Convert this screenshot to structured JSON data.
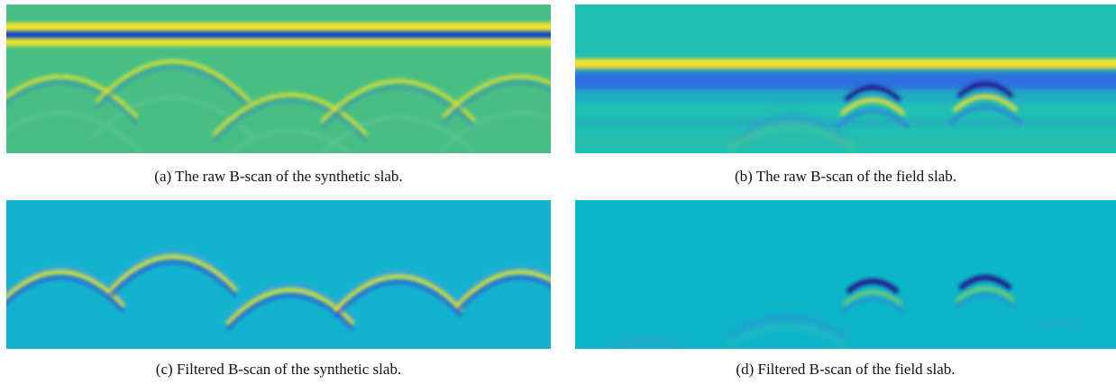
{
  "figure": {
    "panels": [
      {
        "label": "(a)",
        "caption": "The raw B-scan of the synthetic slab."
      },
      {
        "label": "(b)",
        "caption": "The raw B-scan of the field slab."
      },
      {
        "label": "(c)",
        "caption": "Filtered B-scan of the synthetic slab."
      },
      {
        "label": "(d)",
        "caption": "Filtered B-scan of the field slab."
      }
    ]
  }
}
